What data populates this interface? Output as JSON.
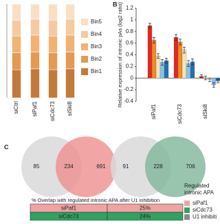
{
  "chart_data": [
    {
      "type": "stacked-bar",
      "categories": [
        "siCtrl",
        "siPaf1",
        "siCdc73",
        "siSki8"
      ],
      "ylim": [
        0,
        100
      ],
      "series": [
        {
          "name": "Bin1",
          "color": "#c27a3a",
          "values": [
            30,
            31,
            30,
            31
          ]
        },
        {
          "name": "Bin2",
          "color": "#e39a52",
          "values": [
            18,
            18,
            18,
            18
          ]
        },
        {
          "name": "Bin3",
          "color": "#f1b374",
          "values": [
            18,
            18,
            18,
            18
          ]
        },
        {
          "name": "Bin4",
          "color": "#f6caa0",
          "values": [
            17,
            17,
            17,
            17
          ]
        },
        {
          "name": "Bin5",
          "color": "#fadfc6",
          "values": [
            17,
            16,
            17,
            16
          ]
        }
      ]
    },
    {
      "type": "bar",
      "label": "B",
      "y_label": "Relative expression of intronic pAs (log2 ratio)",
      "categories": [
        "siPaf1",
        "siCdc73",
        "siSki8"
      ],
      "ylim": [
        -0.4,
        1.2
      ],
      "yticks": [
        1.2,
        1,
        0.8,
        0.6,
        0.4,
        0.2,
        0,
        -0.2,
        -0.4
      ],
      "series": [
        {
          "color": "#e4261f",
          "values": [
            0.9,
            0.7,
            0.03
          ],
          "errors": [
            0.04,
            0.05,
            0.03
          ]
        },
        {
          "color": "#f08a24",
          "values": [
            0.65,
            0.62,
            0.0
          ],
          "errors": [
            0.05,
            0.05,
            0.03
          ]
        },
        {
          "color": "#f6e3b8",
          "values": [
            0.38,
            0.48,
            -0.03
          ],
          "errors": [
            0.04,
            0.05,
            0.03
          ]
        },
        {
          "color": "#86c3ea",
          "values": [
            0.27,
            0.25,
            -0.12
          ],
          "errors": [
            0.05,
            0.05,
            0.04
          ]
        },
        {
          "color": "#2270b2",
          "values": [
            0.3,
            0.28,
            -0.05
          ],
          "errors": [
            0.04,
            0.05,
            0.03
          ]
        }
      ]
    }
  ],
  "panel_c": {
    "label": "C",
    "venns": [
      {
        "left": 85,
        "overlap": 234,
        "right": 691,
        "right_color": "#ee8e8e"
      },
      {
        "left": 91,
        "overlap": 228,
        "right": 706,
        "right_color": "#7fb59a"
      }
    ],
    "table": {
      "title": "% Overlap with regulated intronic APA after U1 inhibition",
      "rows": [
        {
          "name": "siPaf1",
          "value": "25%",
          "color": "#f0a3a3"
        },
        {
          "name": "siCdc73",
          "value": "24%",
          "color": "#2fa35f"
        }
      ]
    },
    "legend": {
      "title_lines": [
        "Regulated",
        "intronic APA"
      ],
      "items": [
        {
          "name": "siPaf1",
          "color": "#f0a3a3"
        },
        {
          "name": "siCdc73",
          "color": "#2fa35f"
        },
        {
          "name": "U1 inhibiti",
          "color": "#8a8a8a"
        }
      ]
    }
  }
}
